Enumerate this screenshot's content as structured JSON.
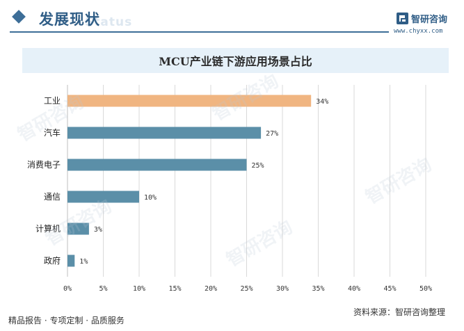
{
  "header": {
    "section_title": "发展现状",
    "section_ghost": "Status",
    "brand_name": "智研咨询",
    "brand_url": "www.chyxx.com"
  },
  "chart_data": {
    "type": "bar",
    "orientation": "horizontal",
    "title": "MCU产业链下游应用场景占比",
    "categories": [
      "工业",
      "汽车",
      "消费电子",
      "通信",
      "计算机",
      "政府"
    ],
    "values": [
      34,
      27,
      25,
      10,
      3,
      1
    ],
    "value_labels": [
      "34%",
      "27%",
      "25%",
      "10%",
      "3%",
      "1%"
    ],
    "xlim": [
      0,
      50
    ],
    "x_ticks": [
      "0%",
      "5%",
      "10%",
      "15%",
      "20%",
      "25%",
      "30%",
      "35%",
      "40%",
      "45%",
      "50%"
    ],
    "highlight_index": 0,
    "colors": {
      "highlight": "#f0b581",
      "default": "#5b8fa8",
      "grid": "#d9d9d9"
    },
    "xlabel": "",
    "ylabel": "",
    "grid": true,
    "legend": "none"
  },
  "footer": {
    "left_text": "精品报告 · 专项定制 · 品质服务",
    "source_text": "资料来源：智研咨询整理"
  },
  "watermark": {
    "text": "智研咨询"
  }
}
